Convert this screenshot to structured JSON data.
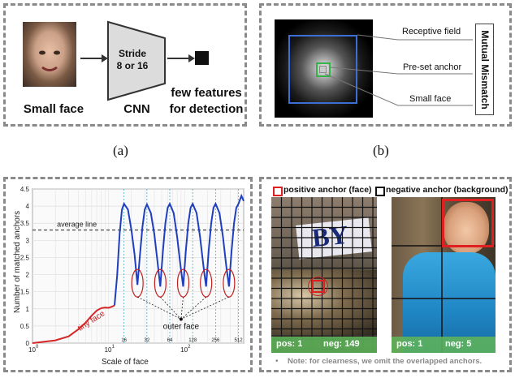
{
  "panel_a": {
    "small_face": "Small face",
    "stride": "Stride",
    "stride_values": "8 or 16",
    "cnn": "CNN",
    "few_features_1": "few features",
    "few_features_2": "for detection",
    "caption": "(a)"
  },
  "panel_b": {
    "receptive_field": "Receptive field",
    "preset_anchor": "Pre-set anchor",
    "small_face": "Small face",
    "mutual_mismatch": "Mutual Mismatch",
    "caption": "(b)"
  },
  "panel_c": {
    "chart_data": {
      "type": "line",
      "ylabel": "Number of matched anchors",
      "xlabel": "Scale of face",
      "x_scale": "log",
      "xlim": [
        1,
        600
      ],
      "ylim": [
        0,
        4.5
      ],
      "y_ticks": [
        "0",
        "0.5",
        "1",
        "1.5",
        "2",
        "2.5",
        "3",
        "3.5",
        "4",
        "4.5"
      ],
      "x_tick_labels": [
        "10",
        "10",
        "10"
      ],
      "x_tick_exponents": [
        "0",
        "1",
        "2"
      ],
      "minor_tick_labels": [
        "16",
        "32",
        "64",
        "128",
        "256",
        "512"
      ],
      "average_line": {
        "label": "average line",
        "y": 3.3
      },
      "annotations": [
        "tiny face",
        "outer face"
      ],
      "series": [
        {
          "segment": "tiny",
          "color": "#d62728",
          "x": [
            1,
            2,
            3,
            4,
            5,
            6,
            7,
            8,
            9,
            10,
            11,
            12
          ],
          "y": [
            0,
            0.08,
            0.2,
            0.4,
            0.6,
            0.8,
            0.95,
            1.02,
            1.04,
            1.03,
            1.06,
            1.1
          ]
        },
        {
          "segment": "normal",
          "color": "#1f3fbf",
          "x": [
            12,
            13,
            14,
            15,
            16,
            18,
            20,
            22,
            24,
            26,
            28,
            30,
            32,
            36,
            40,
            44,
            48,
            52,
            56,
            60,
            64,
            72,
            80,
            88,
            96,
            104,
            112,
            120,
            128,
            144,
            160,
            176,
            192,
            208,
            224,
            240,
            256,
            288,
            320,
            352,
            384,
            416,
            448,
            480,
            512,
            560,
            600
          ],
          "y": [
            1.1,
            2.0,
            3.2,
            3.9,
            4.07,
            3.9,
            3.3,
            2.6,
            1.7,
            2.6,
            3.4,
            3.9,
            4.05,
            3.8,
            3.2,
            2.4,
            1.65,
            2.7,
            3.5,
            3.95,
            4.07,
            3.8,
            3.1,
            2.3,
            1.65,
            2.7,
            3.5,
            3.95,
            4.07,
            3.8,
            3.1,
            2.3,
            1.65,
            2.7,
            3.5,
            3.95,
            4.07,
            3.8,
            3.1,
            2.3,
            1.65,
            2.7,
            3.5,
            3.95,
            4.07,
            4.3,
            4.15
          ]
        }
      ],
      "ellipse_centers": [
        24,
        48,
        96,
        192,
        384
      ]
    }
  },
  "panel_d": {
    "legend_positive": "positive anchor (face)",
    "legend_negative": "negative anchor (background)",
    "left_pos": "pos: 1",
    "left_neg": "neg: 149",
    "right_pos": "pos: 1",
    "right_neg": "neg: 5",
    "note": "Note: for clearness,  we omit the overlapped anchors.",
    "note_bullet": "•",
    "banner_text": "BY"
  },
  "colors": {
    "border": "#8a8a8a",
    "anchor_red": "#e02020",
    "pos_bar": "#6bbd63",
    "curve_blue": "#1f3fbf",
    "curve_red": "#d62728"
  }
}
